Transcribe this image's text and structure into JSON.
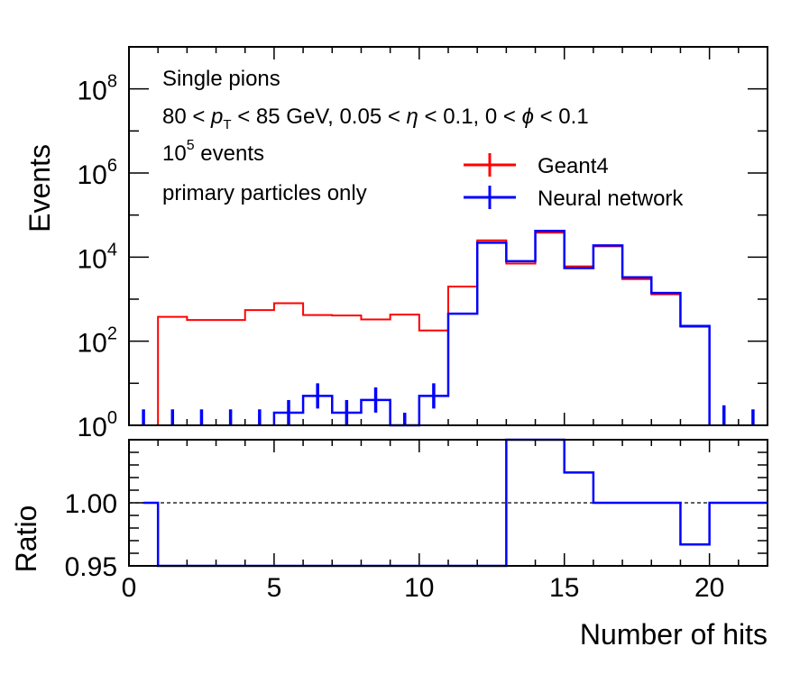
{
  "chart_data": [
    {
      "type": "line",
      "panel": "main",
      "ylabel": "Events",
      "yscale": "log",
      "ylim": [
        1,
        1000000000.0
      ],
      "xlim": [
        0,
        22
      ],
      "ytick_labels": [
        {
          "exp": 0,
          "text_base": "10",
          "text_exp": "0"
        },
        {
          "exp": 2,
          "text_base": "10",
          "text_exp": "2"
        },
        {
          "exp": 4,
          "text_base": "10",
          "text_exp": "4"
        },
        {
          "exp": 6,
          "text_base": "10",
          "text_exp": "6"
        },
        {
          "exp": 8,
          "text_base": "10",
          "text_exp": "8"
        }
      ],
      "annotations": {
        "line1": "Single pions",
        "line2_a": "80 < ",
        "line2_p": "p",
        "line2_T": "T",
        "line2_b": " < 85 GeV, 0.05 < ",
        "line2_eta": "η",
        "line2_c": " < 0.1, 0 < ",
        "line2_phi": "ϕ",
        "line2_d": " < 0.1",
        "line3_base": "10",
        "line3_exp": "5",
        "line3_rest": " events",
        "line4": "primary particles only"
      },
      "legend": [
        {
          "label": "Geant4",
          "color": "#ff0000"
        },
        {
          "label": "Neural network",
          "color": "#0000ff"
        }
      ],
      "series": [
        {
          "name": "Geant4",
          "color": "#ff0000",
          "bin_edges": [
            1,
            2,
            3,
            4,
            5,
            6,
            7,
            8,
            9,
            10,
            11,
            12,
            13,
            14,
            15,
            16,
            17,
            18,
            19,
            20
          ],
          "values": [
            380,
            320,
            320,
            550,
            800,
            420,
            410,
            330,
            430,
            180,
            2000,
            25000,
            7000,
            38000,
            6000,
            18000,
            3000,
            1300,
            220
          ]
        },
        {
          "name": "Neural network",
          "color": "#0000ff",
          "bin_edges": [
            5,
            6,
            7,
            8,
            9,
            10,
            11,
            12,
            13,
            14,
            15,
            16,
            17,
            18,
            19,
            20
          ],
          "values": [
            2,
            5,
            2,
            4,
            1,
            5,
            450,
            22000,
            8000,
            42000,
            5500,
            19000,
            3300,
            1400,
            230
          ],
          "markers": [
            {
              "x": 0.5,
              "y": 1.2
            },
            {
              "x": 1.5,
              "y": 1.2
            },
            {
              "x": 2.5,
              "y": 1.2
            },
            {
              "x": 3.5,
              "y": 1.2
            },
            {
              "x": 4.5,
              "y": 1.2
            },
            {
              "x": 5.5,
              "y": 2
            },
            {
              "x": 6.5,
              "y": 5
            },
            {
              "x": 7.5,
              "y": 2
            },
            {
              "x": 8.5,
              "y": 4
            },
            {
              "x": 9.5,
              "y": 1
            },
            {
              "x": 10.5,
              "y": 5
            },
            {
              "x": 20.5,
              "y": 1.5
            },
            {
              "x": 21.5,
              "y": 1.2
            }
          ]
        }
      ]
    },
    {
      "type": "line",
      "panel": "ratio",
      "xlabel": "Number of hits",
      "ylabel": "Ratio",
      "ylim": [
        0.95,
        1.05
      ],
      "xlim": [
        0,
        22
      ],
      "xticks": [
        0,
        5,
        10,
        15,
        20
      ],
      "xtick_labels": [
        "0",
        "5",
        "10",
        "15",
        "20"
      ],
      "yticks": [
        0.95,
        1.0
      ],
      "ytick_labels": [
        "0.95",
        "1.00"
      ],
      "reference_line": 1.0,
      "series": [
        {
          "name": "Ratio",
          "color": "#0000ff",
          "points": [
            [
              0.5,
              1.0
            ],
            [
              1,
              1.0
            ],
            [
              1,
              0.95
            ],
            [
              13,
              0.95
            ],
            [
              13,
              1.05
            ],
            [
              15,
              1.05
            ],
            [
              15,
              1.024
            ],
            [
              16,
              1.024
            ],
            [
              16,
              1.0
            ],
            [
              19,
              1.0
            ],
            [
              19,
              0.967
            ],
            [
              20,
              0.967
            ],
            [
              20,
              1.0
            ],
            [
              22,
              1.0
            ]
          ]
        }
      ]
    }
  ]
}
